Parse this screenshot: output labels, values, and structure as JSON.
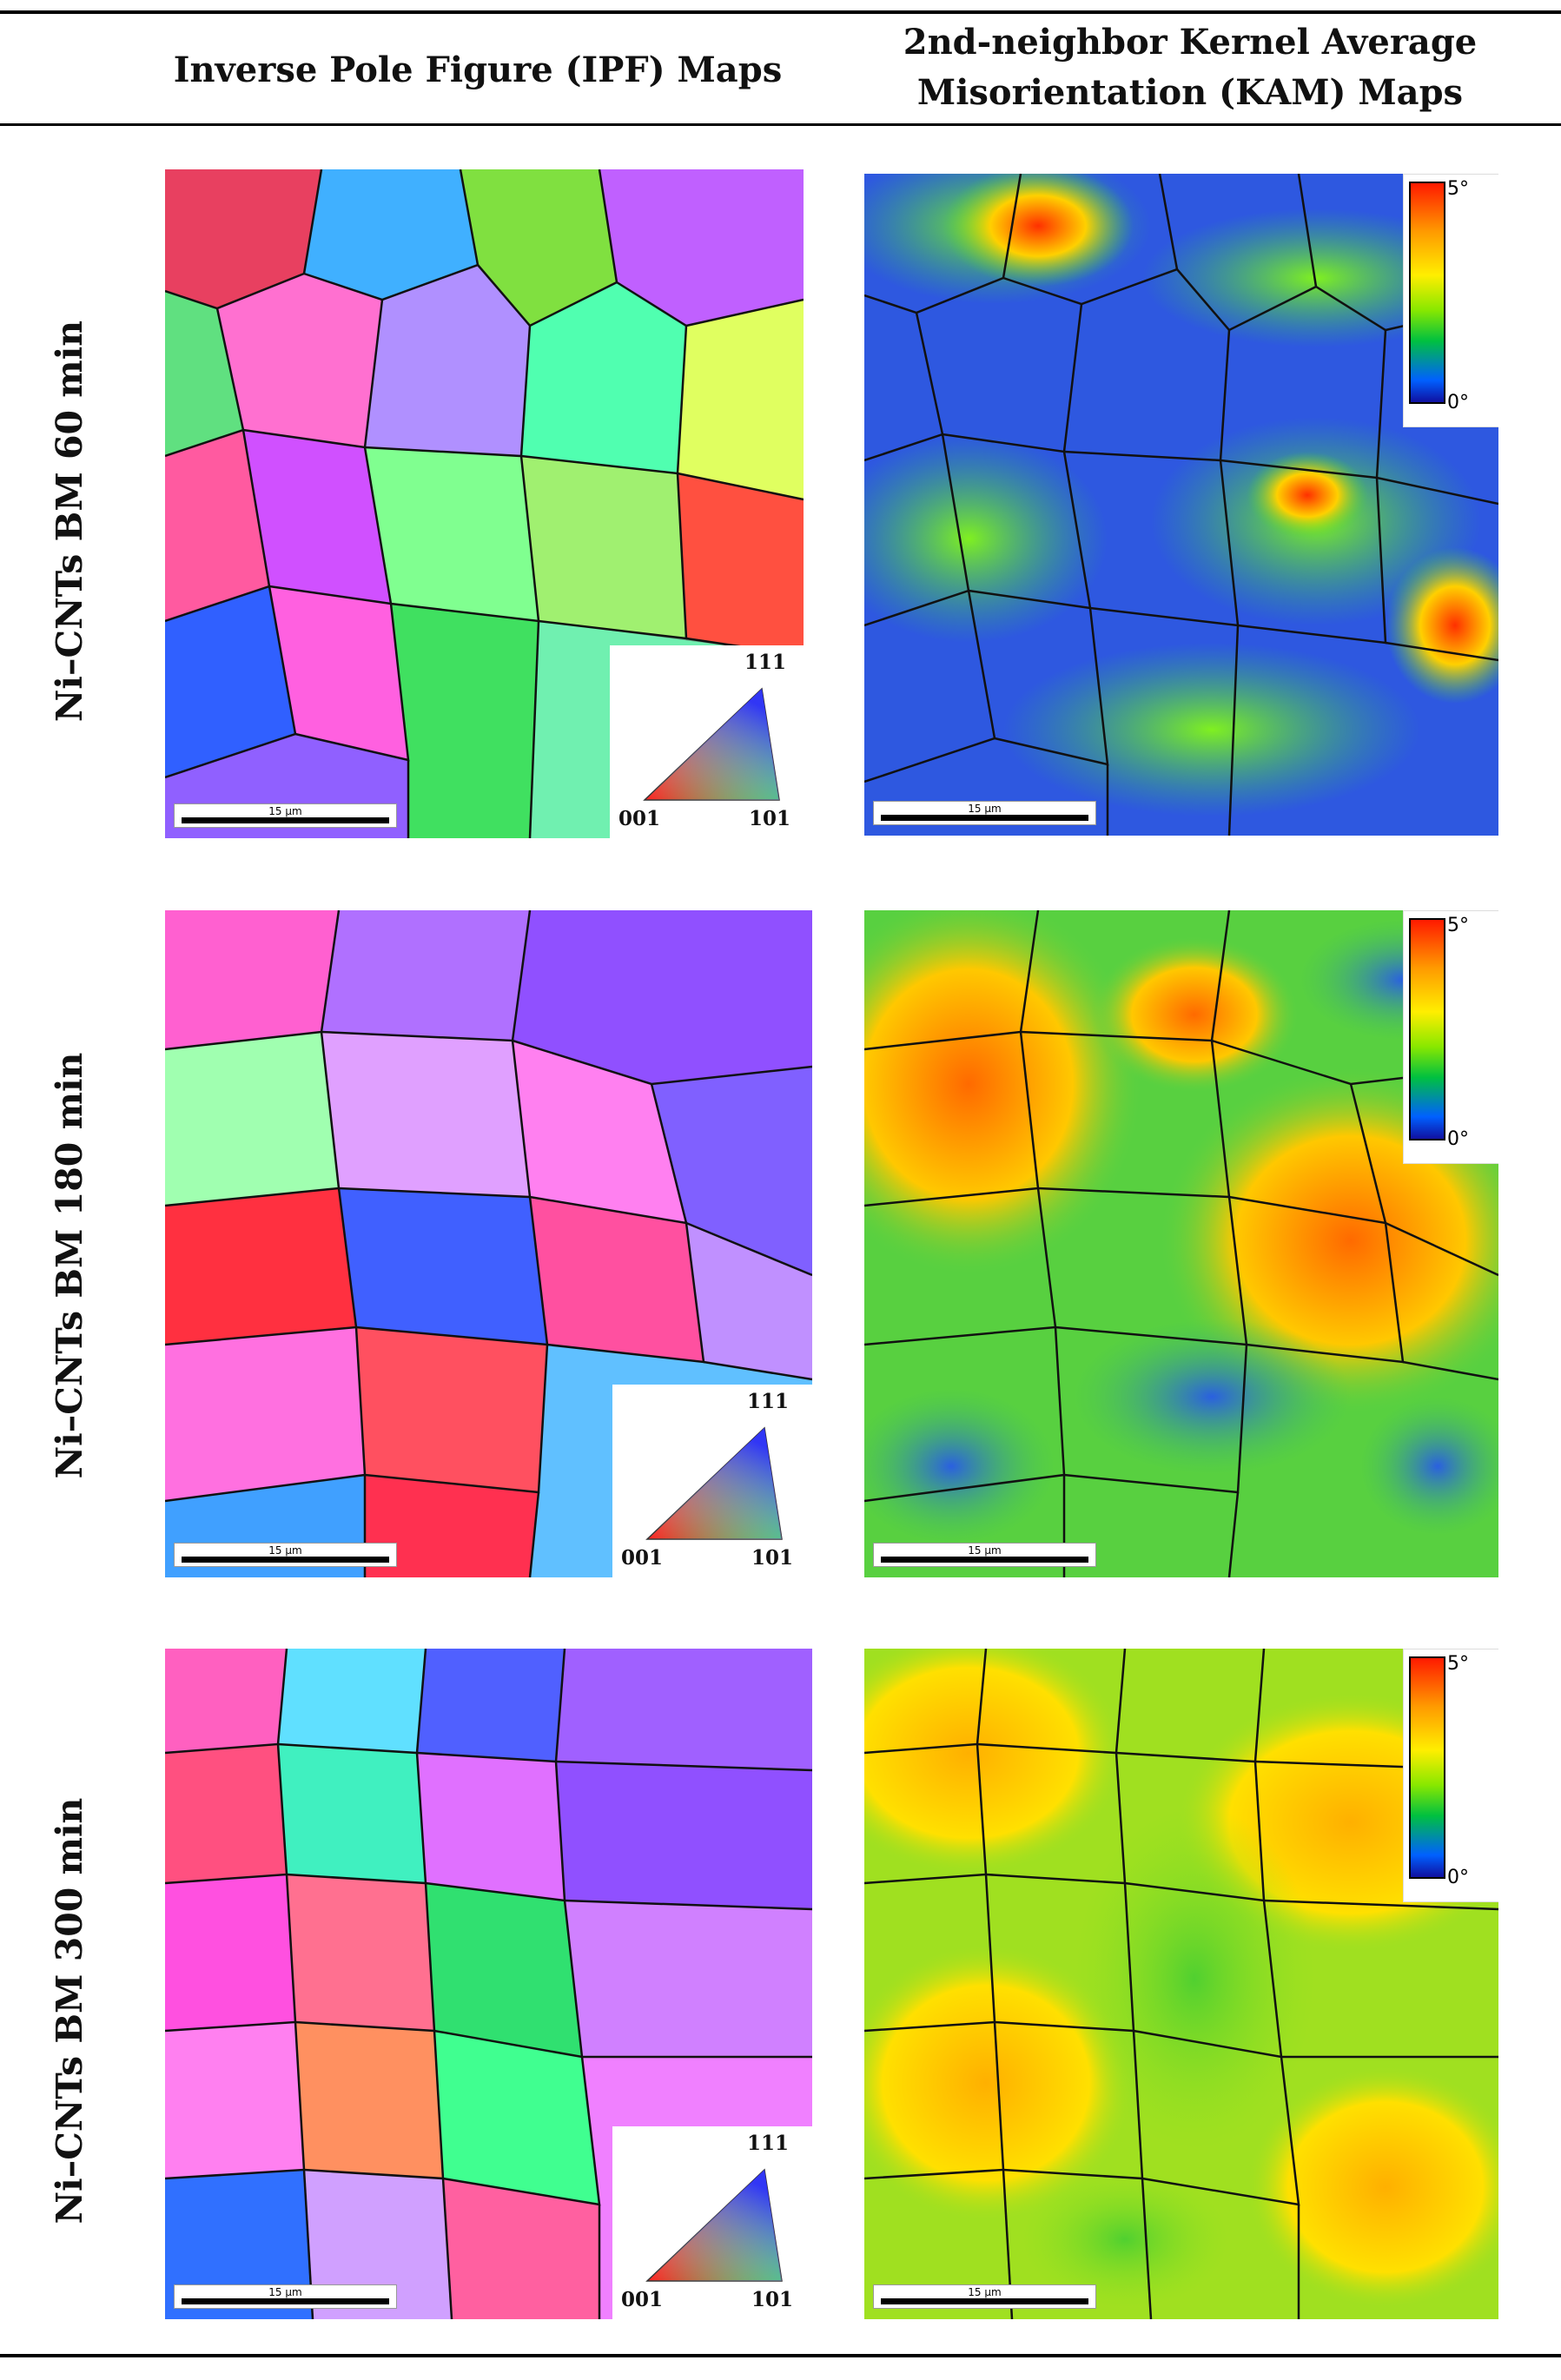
{
  "header": {
    "col1": "Inverse Pole Figure (IPF) Maps",
    "col2_line1": "2nd-neighbor Kernel Average",
    "col2_line2": "Misorientation (KAM) Maps"
  },
  "rows": [
    {
      "label": "Ni–CNTs BM 60 min"
    },
    {
      "label": "Ni–CNTs BM 180 min"
    },
    {
      "label": "Ni–CNTs BM 300 min"
    }
  ],
  "scalebar_label": "15 μm",
  "ipf_legend": {
    "top": "111",
    "left": "001",
    "right": "101"
  },
  "kam_colorbar": {
    "max": "5°",
    "min": "0°"
  },
  "colors": {
    "kam_high": "#ff1a00",
    "kam_mid": "#ffee00",
    "kam_low": "#1010a0"
  }
}
